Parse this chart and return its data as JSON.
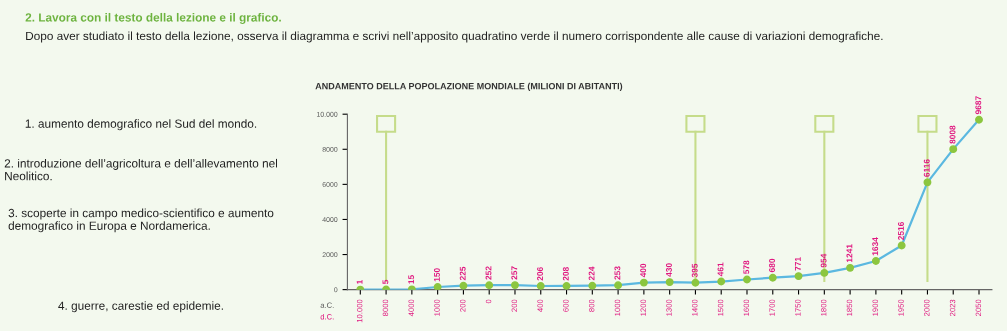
{
  "chart_data": {
    "type": "line",
    "title": "ANDAMENTO DELLA POPOLAZIONE MONDIALE (MILIONI DI ABITANTI)",
    "annotations": [
      "2. Lavora con il testo della lezione e il grafico.",
      "Dopo aver studiato il testo della lezione, osserva il diagramma e scrivi nell’apposito quadratino verde il numero corrispondente alle cause di variazioni demografiche.",
      "1. aumento demografico nel Sud del mondo.",
      "2. introduzione dell’agricoltura e dell’allevamento nel Neolitico.",
      "3. scoperte in campo medico-scientifico e aumento demografico in Europa e Nordamerica.",
      "4. guerre, carestie ed epidemie.",
      "a.C.",
      "d.C."
    ],
    "categories": [
      "10.000",
      "8000",
      "4000",
      "1000",
      "200",
      "0",
      "200",
      "400",
      "600",
      "800",
      "1000",
      "1200",
      "1300",
      "1400",
      "1500",
      "1600",
      "1700",
      "1750",
      "1800",
      "1850",
      "1900",
      "1950",
      "2000",
      "2023",
      "2050"
    ],
    "series": [
      {
        "color": "#5bb8e0",
        "values": [
          1,
          5,
          15,
          150,
          225,
          252,
          257,
          206,
          208,
          224,
          253,
          400,
          430,
          395,
          461,
          578,
          680,
          771,
          954,
          1241,
          1634,
          2516,
          6116,
          8008,
          9687
        ]
      }
    ],
    "marker": "circle",
    "data_labels": true,
    "ylim": [
      0,
      10000
    ],
    "yticks": [
      0,
      2000,
      4000,
      6000,
      8000,
      {
        "value": 10000,
        "label": "10.000"
      }
    ],
    "ref_lines": [
      {
        "axis": "x",
        "value": "8000",
        "color": "#c5dc8a"
      },
      {
        "axis": "x",
        "value": "1400",
        "color": "#c5dc8a"
      },
      {
        "axis": "x",
        "value": "1800",
        "color": "#c5dc8a"
      },
      {
        "axis": "x",
        "value": "2000",
        "color": "#c5dc8a"
      }
    ],
    "grid": false,
    "legend": false
  }
}
